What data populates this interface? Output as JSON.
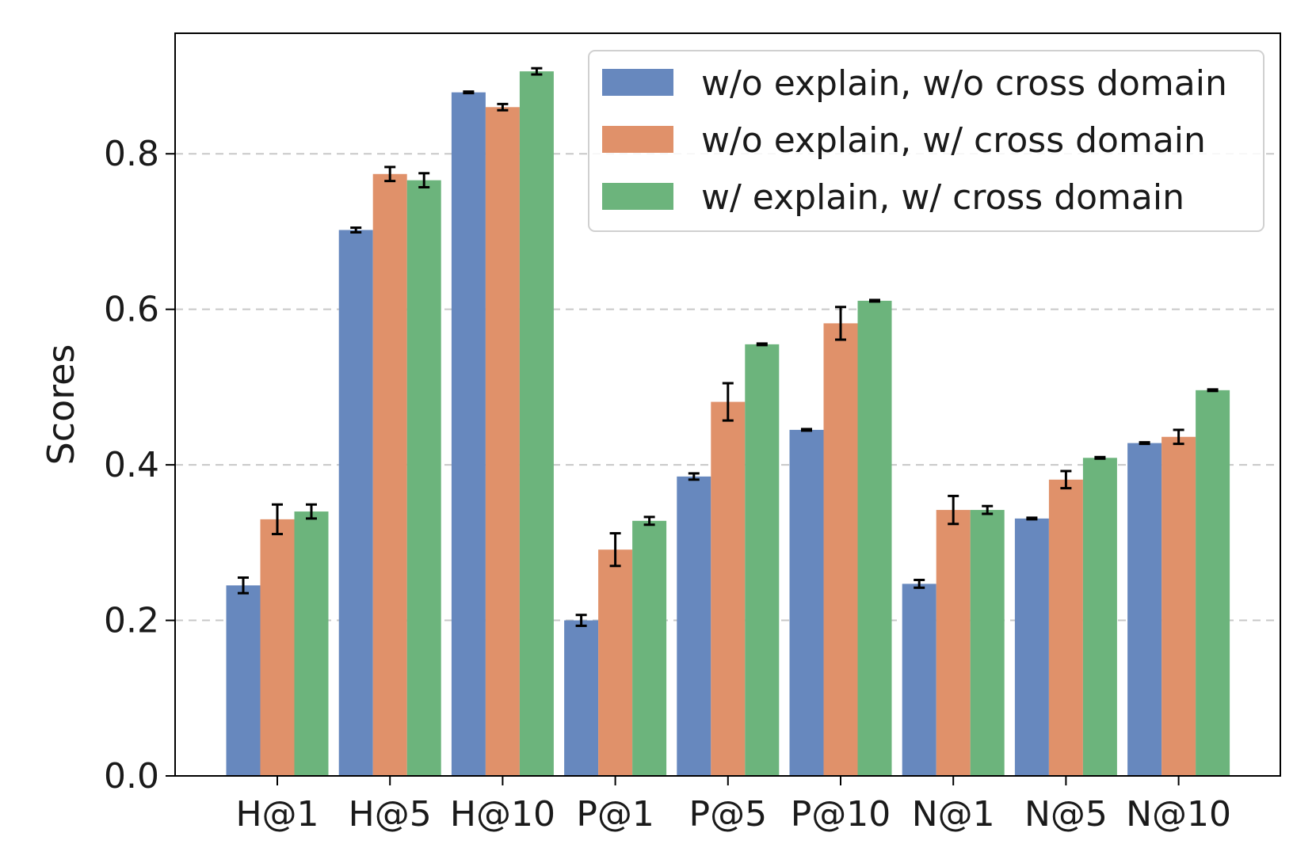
{
  "chart_data": {
    "type": "bar",
    "title": "",
    "xlabel": "",
    "ylabel": "Scores",
    "ylim": [
      0,
      0.955
    ],
    "yticks": [
      "0.0",
      "0.2",
      "0.4",
      "0.6",
      "0.8"
    ],
    "grid": "horizontal-dashed",
    "legend_position": "top-right",
    "categories": [
      "H@1",
      "H@5",
      "H@10",
      "P@1",
      "P@5",
      "P@10",
      "N@1",
      "N@5",
      "N@10"
    ],
    "series": [
      {
        "name": "w/o explain, w/o cross domain",
        "color": "#6788be",
        "values": [
          0.245,
          0.702,
          0.879,
          0.2,
          0.385,
          0.445,
          0.247,
          0.331,
          0.428
        ],
        "errors": [
          0.01,
          0.003,
          0.001,
          0.007,
          0.004,
          0.001,
          0.005,
          0.001,
          0.001
        ]
      },
      {
        "name": "w/o explain, w/ cross domain",
        "color": "#e0916a",
        "values": [
          0.33,
          0.774,
          0.86,
          0.291,
          0.481,
          0.582,
          0.342,
          0.381,
          0.436
        ],
        "errors": [
          0.019,
          0.009,
          0.004,
          0.021,
          0.024,
          0.021,
          0.018,
          0.011,
          0.009
        ]
      },
      {
        "name": "w/ explain, w/ cross domain",
        "color": "#6cb47c",
        "values": [
          0.34,
          0.766,
          0.906,
          0.328,
          0.555,
          0.611,
          0.342,
          0.409,
          0.496
        ],
        "errors": [
          0.009,
          0.009,
          0.004,
          0.005,
          0.001,
          0.001,
          0.005,
          0.001,
          0.001
        ]
      }
    ]
  }
}
